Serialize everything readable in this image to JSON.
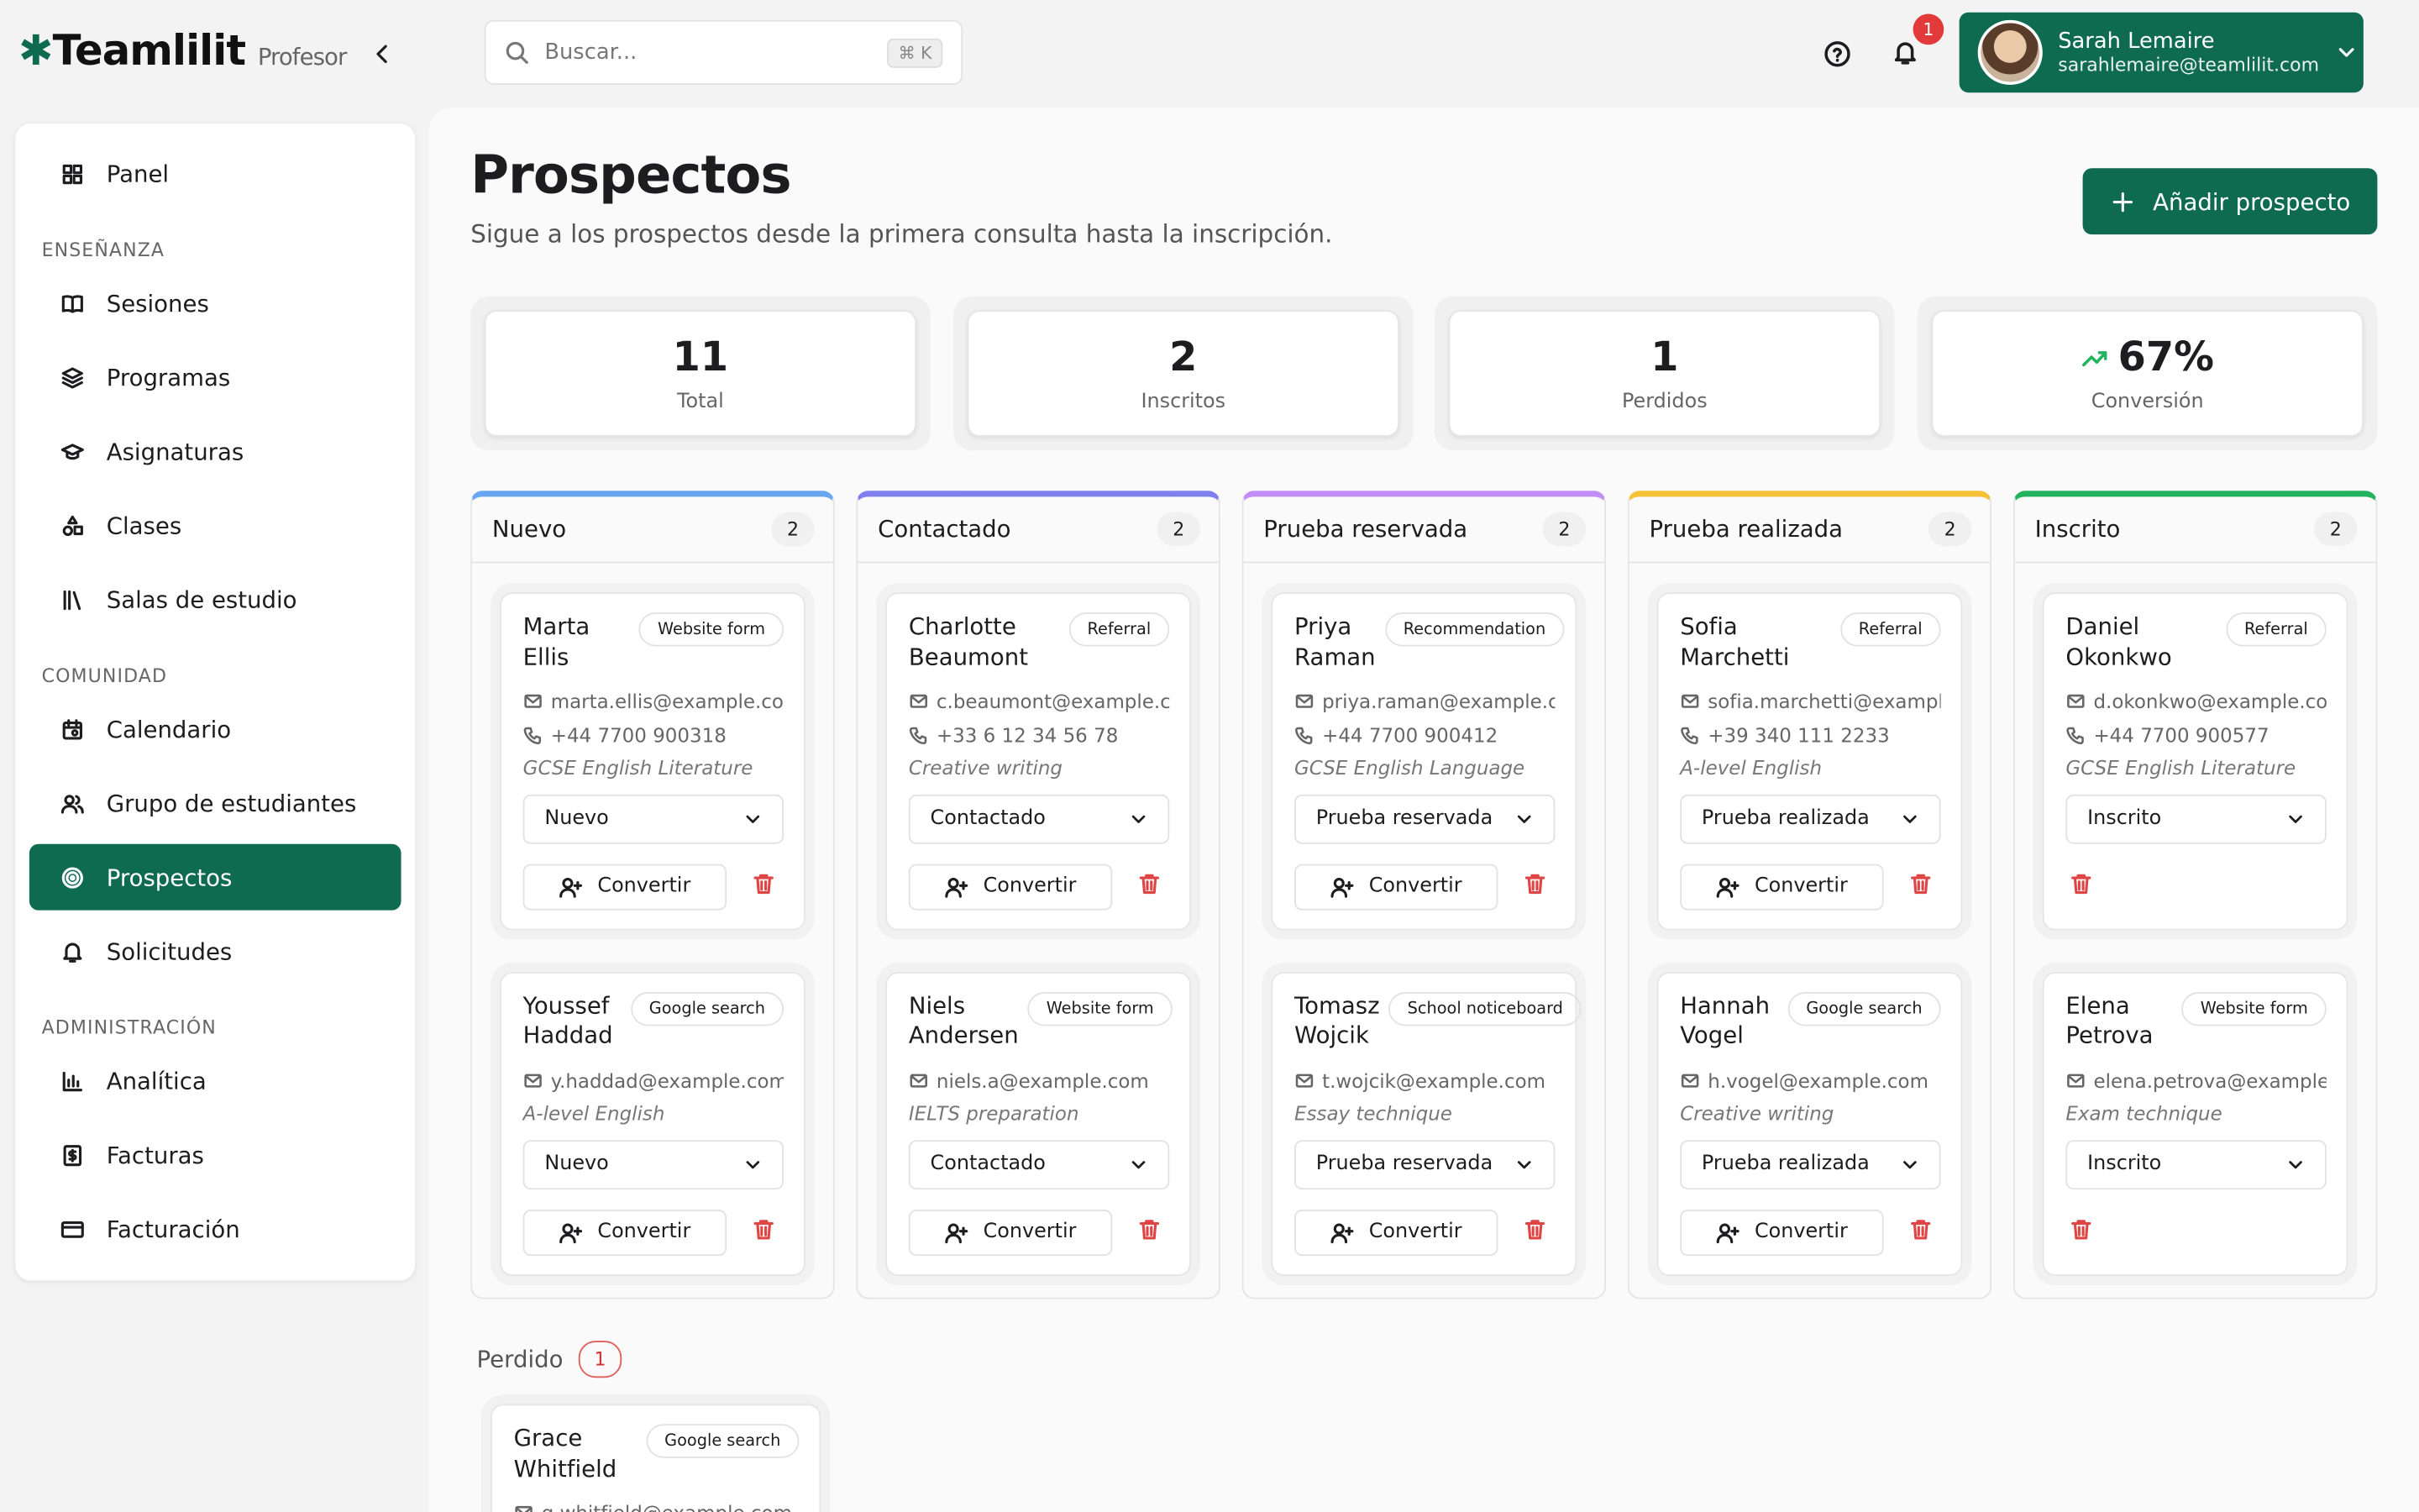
{
  "header": {
    "brand": "Teamlilit",
    "role": "Profesor",
    "search_placeholder": "Buscar...",
    "shortcut": "⌘ K",
    "notification_count": 1,
    "user": {
      "name": "Sarah Lemaire",
      "email": "sarahlemaire@teamlilit.com"
    }
  },
  "sidebar": [
    {
      "items": [
        {
          "label": "Panel"
        }
      ]
    },
    {
      "section": "ENSEÑANZA",
      "items": [
        {
          "label": "Sesiones"
        },
        {
          "label": "Programas"
        },
        {
          "label": "Asignaturas"
        },
        {
          "label": "Clases"
        },
        {
          "label": "Salas de estudio"
        }
      ]
    },
    {
      "section": "COMUNIDAD",
      "items": [
        {
          "label": "Calendario"
        },
        {
          "label": "Grupo de estudiantes"
        },
        {
          "label": "Prospectos",
          "active": true
        },
        {
          "label": "Solicitudes"
        }
      ]
    },
    {
      "section": "ADMINISTRACIÓN",
      "items": [
        {
          "label": "Analítica"
        },
        {
          "label": "Facturas"
        },
        {
          "label": "Facturación"
        }
      ]
    }
  ],
  "page": {
    "title": "Prospectos",
    "subtitle": "Sigue a los prospectos desde la primera consulta hasta la inscripción.",
    "add_button": "Añadir prospecto"
  },
  "stats": [
    {
      "value": 11,
      "label": "Total"
    },
    {
      "value": 2,
      "label": "Inscritos"
    },
    {
      "value": 1,
      "label": "Perdidos"
    },
    {
      "value": "67%",
      "label": "Conversión",
      "trend": "up"
    }
  ],
  "board": {
    "convert_label": "Convertir",
    "columns": [
      {
        "name": "Nuevo",
        "count": 2,
        "color": "#6aa5f2",
        "leads": [
          {
            "name": "Marta Ellis",
            "source": "Website form",
            "email": "marta.ellis@example.com",
            "phone": "+44 7700 900318",
            "program": "GCSE English Literature",
            "status": "Nuevo",
            "convertible": true
          },
          {
            "name": "Youssef Haddad",
            "source": "Google search",
            "email": "y.haddad@example.com",
            "program": "A-level English",
            "status": "Nuevo",
            "convertible": true
          }
        ]
      },
      {
        "name": "Contactado",
        "count": 2,
        "color": "#7f7ff0",
        "leads": [
          {
            "name": "Charlotte Beaumont",
            "source": "Referral",
            "email": "c.beaumont@example.com",
            "phone": "+33 6 12 34 56 78",
            "program": "Creative writing",
            "status": "Contactado",
            "convertible": true
          },
          {
            "name": "Niels Andersen",
            "source": "Website form",
            "email": "niels.a@example.com",
            "program": "IELTS preparation",
            "status": "Contactado",
            "convertible": true
          }
        ]
      },
      {
        "name": "Prueba reservada",
        "count": 2,
        "color": "#c28ef5",
        "leads": [
          {
            "name": "Priya Raman",
            "source": "Recommendation",
            "email": "priya.raman@example.com",
            "phone": "+44 7700 900412",
            "program": "GCSE English Language",
            "status": "Prueba reservada",
            "convertible": true
          },
          {
            "name": "Tomasz Wojcik",
            "source": "School noticeboard",
            "email": "t.wojcik@example.com",
            "program": "Essay technique",
            "status": "Prueba reservada",
            "convertible": true
          }
        ]
      },
      {
        "name": "Prueba realizada",
        "count": 2,
        "color": "#f5c136",
        "leads": [
          {
            "name": "Sofia Marchetti",
            "source": "Referral",
            "email": "sofia.marchetti@example.com",
            "phone": "+39 340 111 2233",
            "program": "A-level English",
            "status": "Prueba realizada",
            "convertible": true
          },
          {
            "name": "Hannah Vogel",
            "source": "Google search",
            "email": "h.vogel@example.com",
            "program": "Creative writing",
            "status": "Prueba realizada",
            "convertible": true
          }
        ]
      },
      {
        "name": "Inscrito",
        "count": 2,
        "color": "#22b35e",
        "leads": [
          {
            "name": "Daniel Okonkwo",
            "source": "Referral",
            "email": "d.okonkwo@example.com",
            "phone": "+44 7700 900577",
            "program": "GCSE English Literature",
            "status": "Inscrito",
            "convertible": false
          },
          {
            "name": "Elena Petrova",
            "source": "Website form",
            "email": "elena.petrova@example.com",
            "program": "Exam technique",
            "status": "Inscrito",
            "convertible": false
          }
        ]
      }
    ]
  },
  "lost": {
    "title": "Perdido",
    "count": 1,
    "leads": [
      {
        "name": "Grace Whitfield",
        "source": "Google search",
        "email": "g.whitfield@example.com"
      }
    ]
  }
}
